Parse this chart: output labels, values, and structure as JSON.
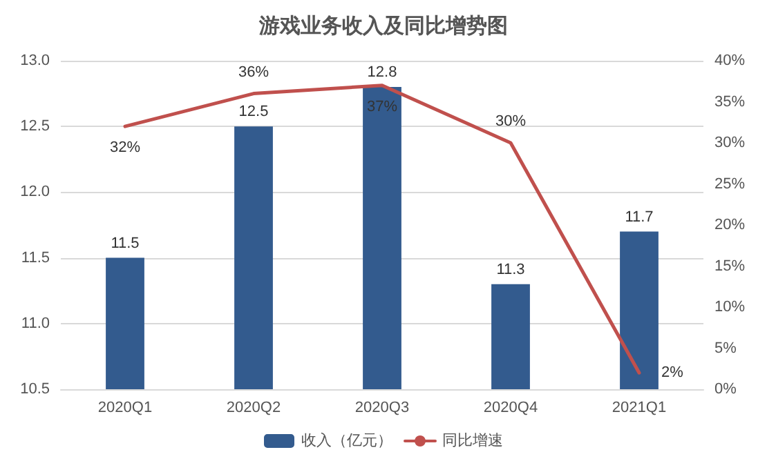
{
  "chart_data": {
    "type": "bar",
    "title": "游戏业务收入及同比增势图",
    "categories": [
      "2020Q1",
      "2020Q2",
      "2020Q3",
      "2020Q4",
      "2021Q1"
    ],
    "series": [
      {
        "name": "收入（亿元）",
        "color": "#335b8e",
        "values": [
          11.5,
          12.5,
          12.8,
          11.3,
          11.7
        ],
        "value_labels": [
          "11.5",
          "12.5",
          "12.8",
          "11.3",
          "11.7"
        ]
      },
      {
        "name": "同比增速",
        "type": "line",
        "axis": "y2",
        "color": "#c0504d",
        "values": [
          32,
          36,
          37,
          30,
          2
        ],
        "value_labels": [
          "32%",
          "36%",
          "37%",
          "30%",
          "2%"
        ]
      }
    ],
    "ylim": [
      10.5,
      13
    ],
    "yticks": [
      {
        "value": 10.5,
        "label": "10.5"
      },
      {
        "value": 11,
        "label": "11.0"
      },
      {
        "value": 11.5,
        "label": "11.5"
      },
      {
        "value": 12,
        "label": "12.0"
      },
      {
        "value": 12.5,
        "label": "12.5"
      },
      {
        "value": 13,
        "label": "13.0"
      }
    ],
    "y2lim": [
      0,
      40
    ],
    "y2ticks": [
      {
        "value": 0,
        "label": "0%"
      },
      {
        "value": 5,
        "label": "5%"
      },
      {
        "value": 10,
        "label": "10%"
      },
      {
        "value": 15,
        "label": "15%"
      },
      {
        "value": 20,
        "label": "20%"
      },
      {
        "value": 25,
        "label": "25%"
      },
      {
        "value": 30,
        "label": "30%"
      },
      {
        "value": 35,
        "label": "35%"
      },
      {
        "value": 40,
        "label": "40%"
      }
    ],
    "grid": "y",
    "legend": "bottom",
    "marker": "none",
    "line_style": "solid"
  }
}
